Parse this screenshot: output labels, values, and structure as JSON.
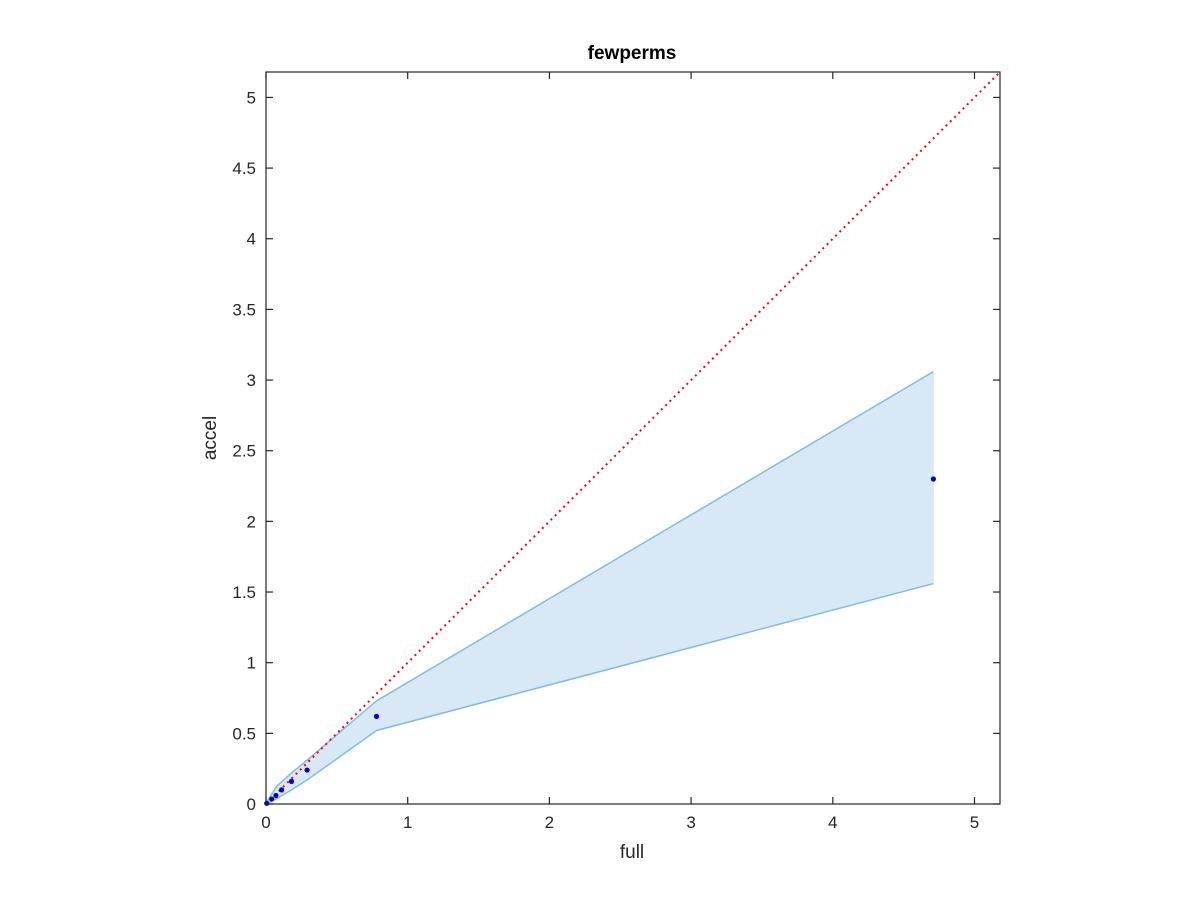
{
  "chart_data": {
    "type": "scatter",
    "title": "fewperms",
    "xlabel": "full",
    "ylabel": "accel",
    "xlim": [
      0,
      5.18
    ],
    "ylim": [
      0,
      5.18
    ],
    "xticks": [
      0,
      1,
      2,
      3,
      4,
      5
    ],
    "xtick_labels": [
      "0",
      "1",
      "2",
      "3",
      "4",
      "5"
    ],
    "yticks": [
      0,
      0.5,
      1,
      1.5,
      2,
      2.5,
      3,
      3.5,
      4,
      4.5,
      5
    ],
    "ytick_labels": [
      "0",
      "0.5",
      "1",
      "1.5",
      "2",
      "2.5",
      "3",
      "3.5",
      "4",
      "4.5",
      "5"
    ],
    "grid": false,
    "series": [
      {
        "kind": "points",
        "color": "#0000cc",
        "x": [
          0.005,
          0.04,
          0.07,
          0.11,
          0.18,
          0.29,
          0.78,
          4.71
        ],
        "y": [
          0.005,
          0.035,
          0.06,
          0.1,
          0.16,
          0.24,
          0.62,
          2.3
        ]
      },
      {
        "kind": "band",
        "fill": "#d9e8f5",
        "edge_color": "#7fbde0",
        "x": [
          0,
          0.04,
          0.08,
          0.18,
          0.29,
          0.78,
          4.71
        ],
        "upper": [
          0.005,
          0.07,
          0.13,
          0.22,
          0.31,
          0.73,
          3.06
        ],
        "lower": [
          0,
          0.02,
          0.04,
          0.1,
          0.17,
          0.52,
          1.56
        ]
      },
      {
        "kind": "reference-line",
        "style": "dotted",
        "color": "#ff0000",
        "x": [
          0,
          5.18
        ],
        "y": [
          0,
          5.18
        ]
      }
    ]
  }
}
